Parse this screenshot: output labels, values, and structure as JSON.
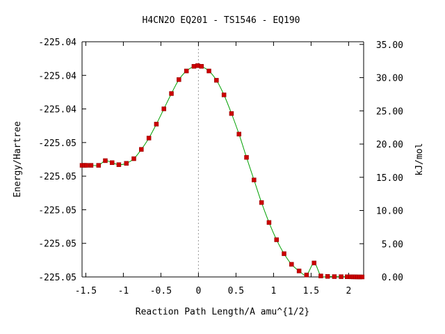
{
  "chart_data": {
    "type": "line",
    "title": "H4CN2O   EQ201 - TS1546 - EQ190",
    "xlabel": "Reaction Path Length/A amu^{1/2}",
    "ylabel": "Energy/Hartree",
    "y2label": "kJ/mol",
    "xlim": [
      -1.55,
      2.2
    ],
    "y2lim": [
      0,
      35.4
    ],
    "x_ticks": [
      -1.5,
      -1,
      -0.5,
      0,
      0.5,
      1,
      1.5,
      2
    ],
    "x_tick_labels": [
      "-1.5",
      "-1",
      "-0.5",
      "0",
      "0.5",
      "1",
      "1.5",
      "2"
    ],
    "y_left_tick_labels": [
      "-225.05",
      "-225.05",
      "-225.05",
      "-225.05",
      "-225.05",
      "-225.04",
      "-225.04",
      "-225.04"
    ],
    "y_right_ticks": [
      0,
      5,
      10,
      15,
      20,
      25,
      30,
      35
    ],
    "y_right_tick_labels": [
      "0.00",
      "5.00",
      "10.00",
      "15.00",
      "20.00",
      "25.00",
      "30.00",
      "35.00"
    ],
    "grid": false,
    "colors": {
      "curve": "#00a000",
      "points": "#cc0000",
      "zero_line": "#999999"
    },
    "series": [
      {
        "x": [
          -1.55,
          -1.52,
          -1.49,
          -1.43,
          -1.33,
          -1.24,
          -1.15,
          -1.06,
          -0.96,
          -0.86,
          -0.76,
          -0.66,
          -0.56,
          -0.46,
          -0.36,
          -0.26,
          -0.16,
          -0.06,
          -0.01,
          0.04,
          0.14,
          0.24,
          0.34,
          0.44,
          0.54,
          0.64,
          0.74,
          0.84,
          0.94,
          1.04,
          1.14,
          1.24,
          1.34,
          1.44,
          1.54,
          1.63,
          1.72,
          1.81,
          1.9,
          1.98,
          2.03,
          2.06,
          2.09,
          2.12,
          2.15,
          2.18
        ],
        "y": [
          16.8,
          16.8,
          16.8,
          16.8,
          16.8,
          17.5,
          17.2,
          16.9,
          17.1,
          17.8,
          19.2,
          20.9,
          23.0,
          25.3,
          27.6,
          29.7,
          31.0,
          31.7,
          31.8,
          31.7,
          31.0,
          29.6,
          27.4,
          24.6,
          21.5,
          18.0,
          14.6,
          11.2,
          8.2,
          5.6,
          3.5,
          1.9,
          0.9,
          0.3,
          2.1,
          0.15,
          0.08,
          0.05,
          0.04,
          0.03,
          0.02,
          0.01,
          0.01,
          0.0,
          0.0,
          0.0
        ]
      }
    ]
  }
}
